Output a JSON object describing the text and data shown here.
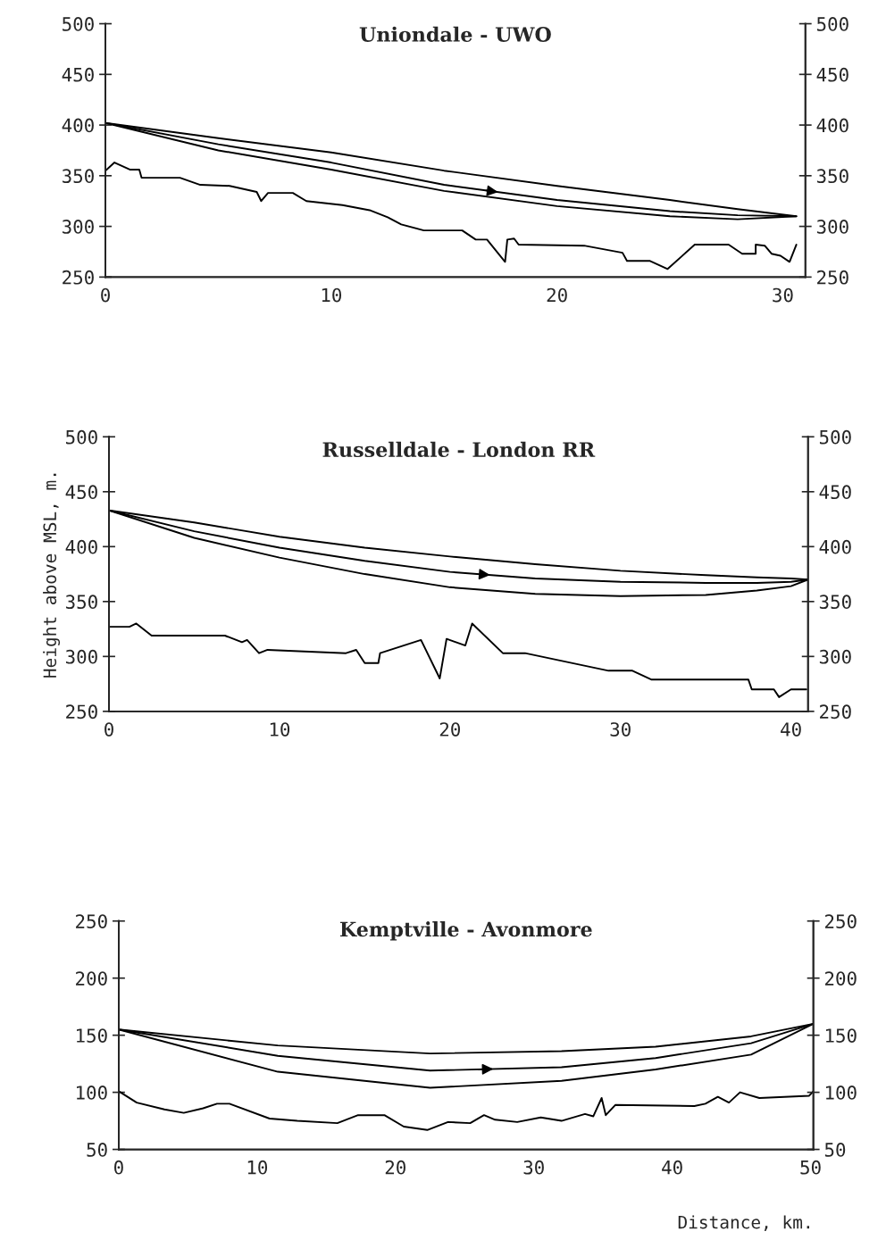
{
  "chart_data": [
    {
      "type": "line",
      "title": "Uniondale - UWO",
      "line_style": "solid",
      "marker": "none",
      "grid": false,
      "xlim": [
        0,
        31
      ],
      "xticks": [
        0,
        10,
        20,
        30
      ],
      "ylim": [
        250,
        500
      ],
      "yticks": [
        250,
        300,
        350,
        400,
        450,
        500
      ],
      "y2lim": [
        250,
        500
      ],
      "y2ticks": [
        250,
        300,
        350,
        400,
        450,
        500
      ],
      "series": [
        {
          "color": "#000000",
          "x": [
            0,
            0.4,
            1.1,
            1.5,
            1.6,
            3.3,
            4.2,
            5.5,
            6.7,
            6.9,
            7.2,
            8.3,
            8.9,
            10.5,
            11.7,
            12.5,
            13.1,
            14.1,
            15.8,
            16.4,
            16.9,
            17.7,
            17.8,
            18.1,
            18.3,
            21.2,
            22.9,
            23.1,
            24.1,
            24.9,
            26.1,
            27.6,
            28.2,
            28.8,
            28.8,
            29.2,
            29.5,
            29.9,
            30.3,
            30.6
          ],
          "values": [
            355,
            363,
            356,
            356,
            348,
            348,
            341,
            340,
            334,
            325,
            333,
            333,
            325,
            321,
            316,
            309,
            302,
            296,
            296,
            287,
            287,
            265,
            287,
            288,
            282,
            281,
            274,
            266,
            266,
            258,
            282,
            282,
            273,
            273,
            282,
            281,
            273,
            271,
            265,
            282
          ]
        },
        {
          "color": "#000000",
          "x": [
            0,
            5,
            10,
            15,
            20,
            25,
            28,
            30.6
          ],
          "values": [
            402,
            381,
            363,
            341,
            326,
            315,
            311,
            310
          ],
          "lower": [
            402,
            375,
            356,
            335,
            320,
            310,
            307,
            310
          ],
          "upper": [
            402,
            387,
            373,
            355,
            340,
            326,
            317,
            310
          ]
        }
      ]
    },
    {
      "type": "line",
      "title": "Russelldale - London RR",
      "ylabel": "Height above MSL, m.",
      "line_style": "solid",
      "marker": "none",
      "grid": false,
      "xlim": [
        0,
        41
      ],
      "xticks": [
        0,
        10,
        20,
        30,
        40
      ],
      "ylim": [
        250,
        500
      ],
      "yticks": [
        250,
        300,
        350,
        400,
        450,
        500
      ],
      "y2lim": [
        250,
        500
      ],
      "y2ticks": [
        250,
        300,
        350,
        400,
        450,
        500
      ],
      "series": [
        {
          "color": "#000000",
          "x": [
            0,
            1.2,
            1.6,
            2.5,
            6.8,
            7.8,
            8.1,
            8.8,
            9.3,
            13.9,
            14.5,
            15.0,
            15.8,
            15.9,
            18.3,
            19.4,
            19.8,
            20.9,
            21.3,
            23.1,
            24.4,
            29.3,
            30.7,
            31.8,
            37.5,
            37.7,
            39.0,
            39.3,
            40.0,
            40.9
          ],
          "values": [
            327,
            327,
            330,
            319,
            319,
            313,
            315,
            303,
            306,
            303,
            306,
            294,
            294,
            303,
            315,
            280,
            316,
            310,
            330,
            303,
            303,
            287,
            287,
            279,
            279,
            270,
            270,
            263,
            270,
            270
          ]
        },
        {
          "color": "#000000",
          "x": [
            0,
            5,
            10,
            15,
            20,
            25,
            30,
            35,
            38,
            40,
            41
          ],
          "values": [
            433,
            414,
            399,
            387,
            377,
            371,
            368,
            367,
            367,
            368,
            370
          ],
          "lower": [
            433,
            408,
            390,
            375,
            363,
            357,
            355,
            356,
            360,
            364,
            370
          ],
          "upper": [
            433,
            422,
            409,
            399,
            391,
            384,
            378,
            374,
            372,
            371,
            370
          ]
        }
      ]
    },
    {
      "type": "line",
      "title": "Kemptville - Avonmore",
      "xlabel": "Distance, km.",
      "line_style": "solid",
      "marker": "none",
      "grid": false,
      "xlim": [
        0,
        50.2
      ],
      "xticks": [
        0,
        10,
        20,
        30,
        40,
        50
      ],
      "ylim": [
        50,
        250
      ],
      "yticks": [
        50,
        100,
        150,
        200,
        250
      ],
      "y2lim": [
        50,
        250
      ],
      "y2ticks": [
        50,
        100,
        150,
        200,
        250
      ],
      "series": [
        {
          "color": "#000000",
          "x": [
            0,
            1.3,
            3.3,
            4.7,
            6.1,
            7.1,
            8.0,
            10.9,
            12.9,
            15.8,
            17.3,
            19.2,
            20.6,
            22.3,
            23.8,
            25.4,
            26.4,
            27.2,
            28.8,
            30.5,
            32.0,
            33.7,
            34.3,
            34.9,
            35.2,
            35.9,
            41.6,
            42.4,
            43.3,
            44.1,
            44.9,
            46.3,
            49.9,
            50.2
          ],
          "values": [
            101,
            91,
            85,
            82,
            86,
            90,
            90,
            77,
            75,
            73,
            80,
            80,
            70,
            67,
            74,
            73,
            80,
            76,
            74,
            78,
            75,
            81,
            79,
            95,
            80,
            89,
            88,
            90,
            96,
            91,
            100,
            95,
            97,
            101
          ]
        },
        {
          "color": "#000000",
          "x": [
            0,
            11.5,
            22.5,
            32,
            38.8,
            45.7,
            50.2
          ],
          "values": [
            155,
            132,
            119,
            122,
            130,
            143,
            160
          ],
          "lower": [
            155,
            118,
            104,
            110,
            120,
            133,
            160
          ],
          "upper": [
            155,
            141,
            134,
            136,
            140,
            149,
            160
          ]
        }
      ]
    }
  ]
}
